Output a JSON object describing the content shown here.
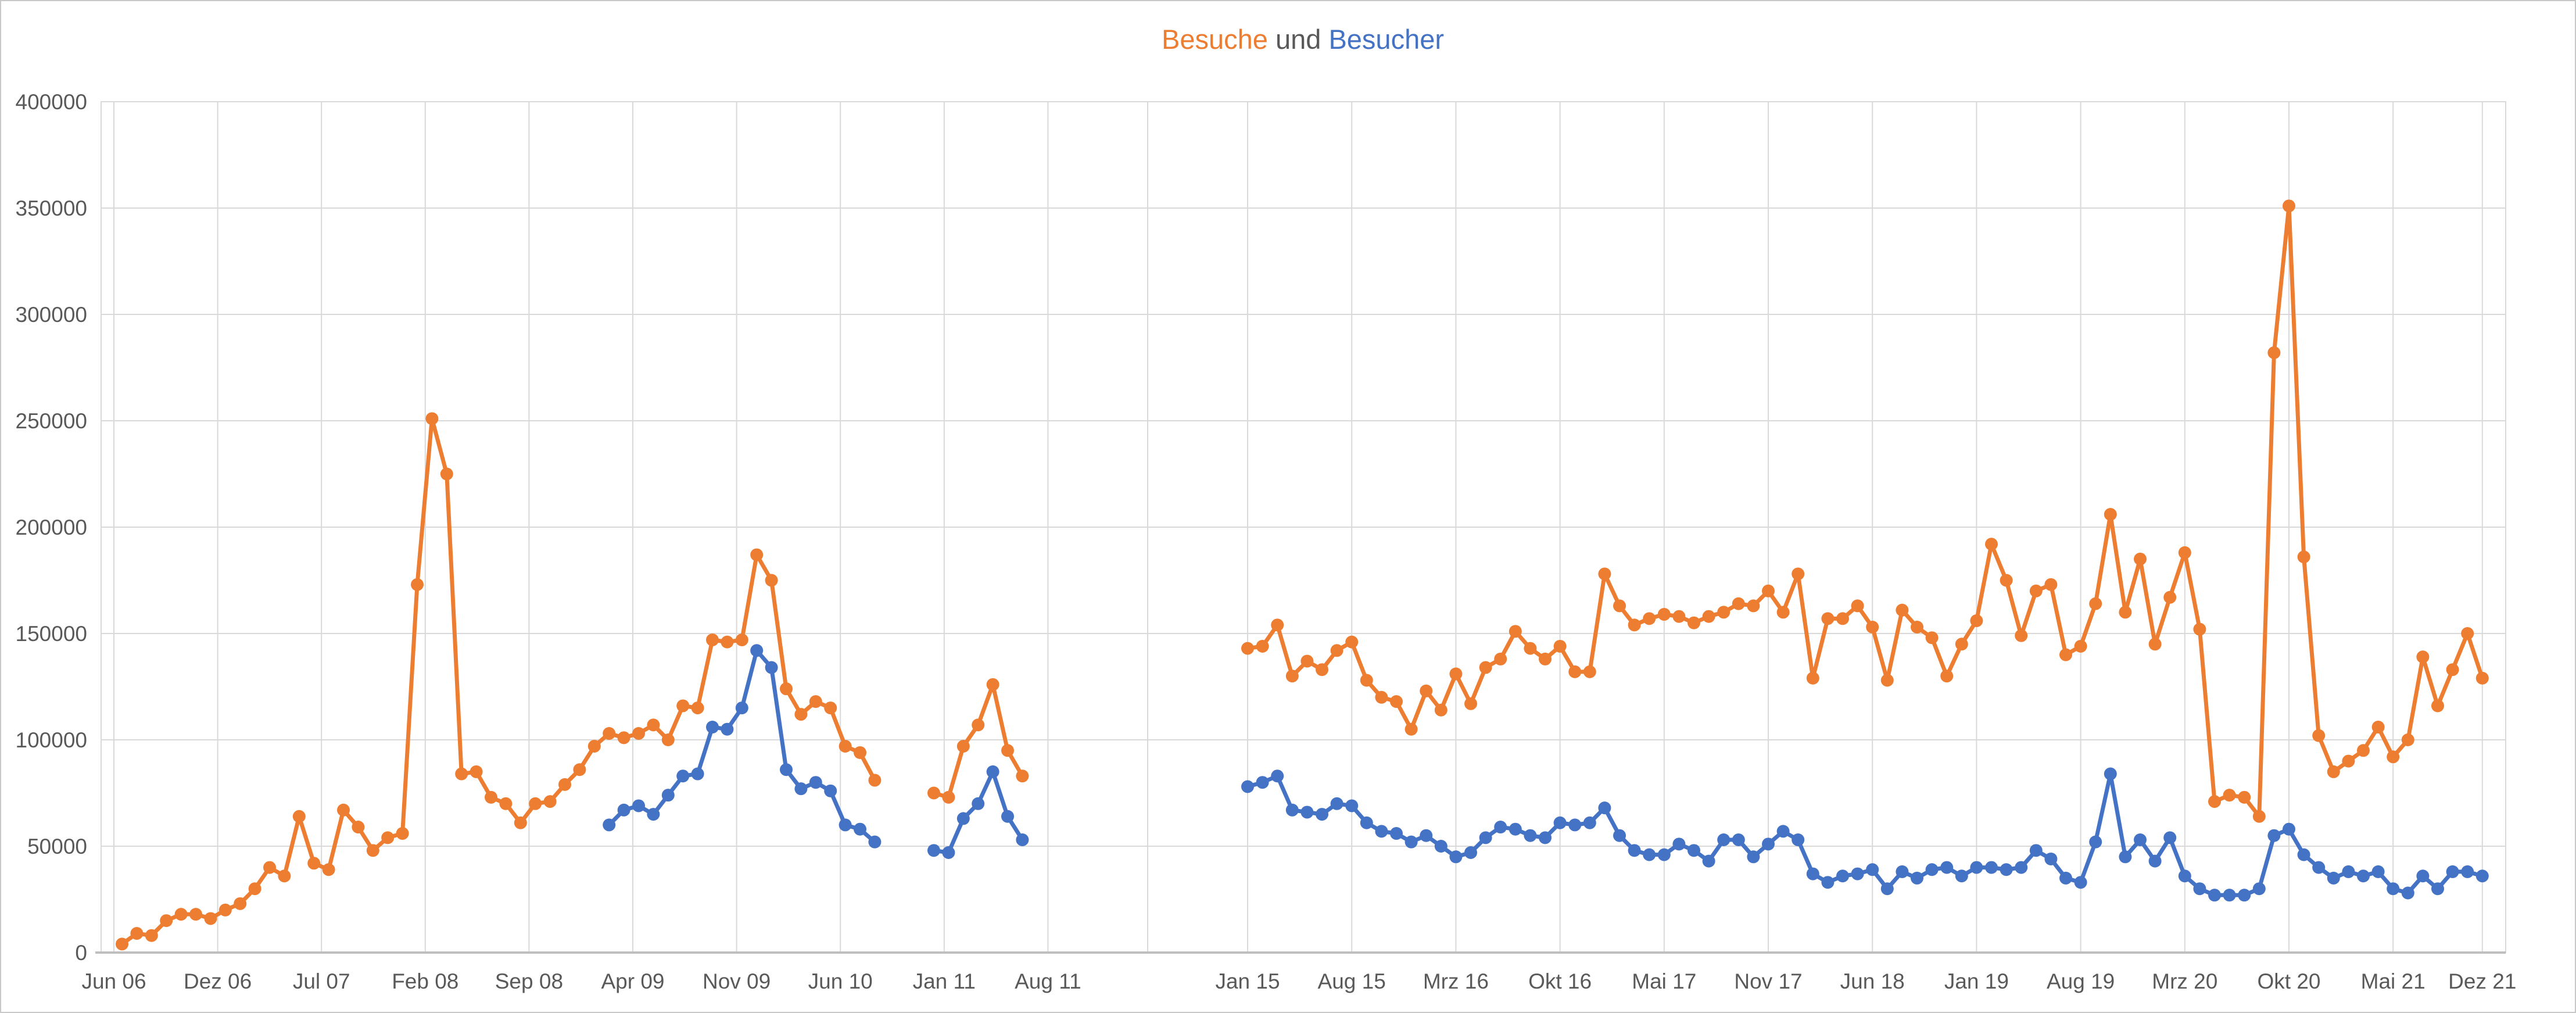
{
  "title": {
    "part_besuche": "Besuche",
    "part_und": " und ",
    "part_besucher": "Besucher"
  },
  "colors": {
    "besuche_orange": "#ED7D31",
    "besucher_blue": "#4472C4",
    "title_gray": "#595959",
    "axis_label_gray": "#595959",
    "gridline_gray": "#D9D9D9",
    "axis_line_gray": "#BFBFBF",
    "background": "#FFFFFF"
  },
  "chart_data": {
    "type": "line",
    "title": "Besuche und Besucher",
    "grid": "both",
    "legend_position": "none",
    "markers": true,
    "ylim": [
      0,
      400000
    ],
    "y_axis": {
      "min": 0,
      "max": 400000,
      "step": 50000,
      "tick_labels": [
        "400000",
        "350000",
        "300000",
        "250000",
        "200000",
        "150000",
        "100000",
        "50000",
        "0"
      ]
    },
    "x_axis": {
      "note": "category axis of monthly values; data gap between Aug 11 and Jan 15 and missing points Okt 10 - Dez 10",
      "left_tick_labels": [
        "Jun 06",
        "Dez 06",
        "Jul 07",
        "Feb 08",
        "Sep 08",
        "Apr 09",
        "Nov 09",
        "Jun 10",
        "Jan 11",
        "Aug 11"
      ],
      "right_tick_labels": [
        "Jan 15",
        "Aug 15",
        "Mrz 16",
        "Okt 16",
        "Mai 17",
        "Nov 17",
        "Jun 18",
        "Jan 19",
        "Aug 19",
        "Mrz 20",
        "Okt 20",
        "Mai 21",
        "Dez 21"
      ]
    },
    "series_names": [
      "Besuche",
      "Besucher"
    ],
    "left_segment": {
      "months": [
        "Jun 06",
        "Jul 06",
        "Aug 06",
        "Sep 06",
        "Okt 06",
        "Nov 06",
        "Dez 06",
        "Jan 07",
        "Feb 07",
        "Mrz 07",
        "Apr 07",
        "Mai 07",
        "Jun 07",
        "Jul 07",
        "Aug 07",
        "Sep 07",
        "Okt 07",
        "Nov 07",
        "Dez 07",
        "Jan 08",
        "Feb 08",
        "Mrz 08",
        "Apr 08",
        "Mai 08",
        "Jun 08",
        "Jul 08",
        "Aug 08",
        "Sep 08",
        "Okt 08",
        "Nov 08",
        "Dez 08",
        "Jan 09",
        "Feb 09",
        "Mrz 09",
        "Apr 09",
        "Mai 09",
        "Jun 09",
        "Jul 09",
        "Aug 09",
        "Sep 09",
        "Okt 09",
        "Nov 09",
        "Dez 09",
        "Jan 10",
        "Feb 10",
        "Mrz 10",
        "Apr 10",
        "Mai 10",
        "Jun 10",
        "Jul 10",
        "Aug 10",
        "Sep 10",
        "Okt 10",
        "Nov 10",
        "Dez 10",
        "Jan 11",
        "Feb 11",
        "Mrz 11",
        "Apr 11",
        "Mai 11",
        "Jun 11",
        "Jul 11"
      ],
      "besuche": [
        4000,
        9000,
        8000,
        15000,
        18000,
        18000,
        16000,
        20000,
        23000,
        30000,
        40000,
        36000,
        64000,
        42000,
        39000,
        67000,
        59000,
        48000,
        54000,
        56000,
        173000,
        251000,
        225000,
        84000,
        85000,
        73000,
        70000,
        61000,
        70000,
        71000,
        79000,
        86000,
        97000,
        103000,
        101000,
        103000,
        107000,
        100000,
        116000,
        115000,
        147000,
        146000,
        147000,
        187000,
        175000,
        124000,
        112000,
        118000,
        115000,
        97000,
        94000,
        81000,
        null,
        null,
        null,
        75000,
        73000,
        97000,
        107000,
        126000,
        95000,
        83000
      ],
      "besucher": [
        null,
        null,
        null,
        null,
        null,
        null,
        null,
        null,
        null,
        null,
        null,
        null,
        null,
        null,
        null,
        null,
        null,
        null,
        null,
        null,
        null,
        null,
        null,
        null,
        null,
        null,
        null,
        null,
        null,
        null,
        null,
        null,
        null,
        60000,
        67000,
        69000,
        65000,
        74000,
        83000,
        84000,
        106000,
        105000,
        115000,
        142000,
        134000,
        86000,
        77000,
        80000,
        76000,
        60000,
        58000,
        52000,
        null,
        null,
        null,
        48000,
        47000,
        63000,
        70000,
        85000,
        64000,
        53000
      ]
    },
    "right_segment": {
      "months": [
        "Jan 15",
        "Feb 15",
        "Mrz 15",
        "Apr 15",
        "Mai 15",
        "Jun 15",
        "Jul 15",
        "Aug 15",
        "Sep 15",
        "Okt 15",
        "Nov 15",
        "Dez 15",
        "Jan 16",
        "Feb 16",
        "Mrz 16",
        "Apr 16",
        "Mai 16",
        "Jun 16",
        "Jul 16",
        "Aug 16",
        "Sep 16",
        "Okt 16",
        "Nov 16",
        "Dez 16",
        "Jan 17",
        "Feb 17",
        "Mrz 17",
        "Apr 17",
        "Mai 17",
        "Jun 17",
        "Jul 17",
        "Aug 17",
        "Sep 17",
        "Okt 17",
        "Nov 17",
        "Dez 17",
        "Jan 18",
        "Feb 18",
        "Mrz 18",
        "Apr 18",
        "Mai 18",
        "Jun 18",
        "Jul 18",
        "Aug 18",
        "Sep 18",
        "Okt 18",
        "Nov 18",
        "Dez 18",
        "Jan 19",
        "Feb 19",
        "Mrz 19",
        "Apr 19",
        "Mai 19",
        "Jun 19",
        "Jul 19",
        "Aug 19",
        "Sep 19",
        "Okt 19",
        "Nov 19",
        "Dez 19",
        "Jan 20",
        "Feb 20",
        "Mrz 20",
        "Apr 20",
        "Mai 20",
        "Jun 20",
        "Jul 20",
        "Aug 20",
        "Sep 20",
        "Okt 20",
        "Nov 20",
        "Dez 20",
        "Jan 21",
        "Feb 21",
        "Mrz 21",
        "Apr 21",
        "Mai 21",
        "Jun 21",
        "Jul 21",
        "Aug 21",
        "Sep 21",
        "Okt 21",
        "Nov 21",
        "Dez 21"
      ],
      "besuche": [
        143000,
        144000,
        154000,
        130000,
        137000,
        133000,
        142000,
        146000,
        128000,
        120000,
        118000,
        105000,
        123000,
        114000,
        131000,
        117000,
        134000,
        138000,
        151000,
        143000,
        138000,
        144000,
        132000,
        132000,
        178000,
        163000,
        154000,
        157000,
        159000,
        158000,
        155000,
        158000,
        160000,
        164000,
        163000,
        170000,
        160000,
        178000,
        129000,
        157000,
        157000,
        163000,
        153000,
        128000,
        161000,
        153000,
        148000,
        130000,
        145000,
        156000,
        192000,
        175000,
        149000,
        170000,
        173000,
        140000,
        144000,
        164000,
        206000,
        160000,
        185000,
        145000,
        167000,
        188000,
        152000,
        71000,
        74000,
        73000,
        64000,
        282000,
        351000,
        186000,
        102000,
        85000,
        90000,
        95000,
        106000,
        92000,
        100000,
        139000,
        116000,
        133000,
        150000,
        129000
      ],
      "besucher": [
        78000,
        80000,
        83000,
        67000,
        66000,
        65000,
        70000,
        69000,
        61000,
        57000,
        56000,
        52000,
        55000,
        50000,
        45000,
        47000,
        54000,
        59000,
        58000,
        55000,
        54000,
        61000,
        60000,
        61000,
        68000,
        55000,
        48000,
        46000,
        46000,
        51000,
        48000,
        43000,
        53000,
        53000,
        45000,
        51000,
        57000,
        53000,
        37000,
        33000,
        36000,
        37000,
        39000,
        30000,
        38000,
        35000,
        39000,
        40000,
        36000,
        40000,
        40000,
        39000,
        40000,
        48000,
        44000,
        35000,
        33000,
        52000,
        84000,
        45000,
        53000,
        43000,
        54000,
        36000,
        30000,
        27000,
        27000,
        27000,
        30000,
        55000,
        58000,
        46000,
        40000,
        35000,
        38000,
        36000,
        38000,
        30000,
        28000,
        36000,
        30000,
        38000,
        38000,
        36000
      ]
    }
  }
}
